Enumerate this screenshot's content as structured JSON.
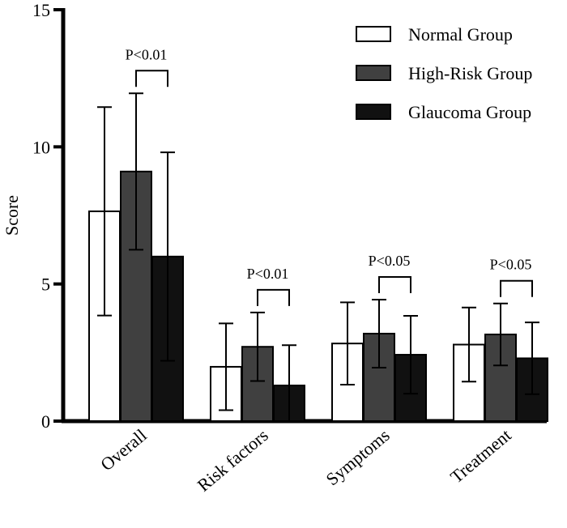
{
  "chart_data": {
    "type": "bar",
    "title": "",
    "xlabel": "",
    "ylabel": "Score",
    "ylim": [
      0,
      15
    ],
    "yticks": [
      0,
      5,
      10,
      15
    ],
    "categories": [
      "Overall",
      "Risk factors",
      "Symptoms",
      "Treatment"
    ],
    "series": [
      {
        "name": "Normal Group",
        "color": "#ffffff",
        "values": [
          7.65,
          1.98,
          2.83,
          2.79
        ],
        "errors": [
          3.8,
          1.58,
          1.5,
          1.35
        ]
      },
      {
        "name": "High-Risk Group",
        "color": "#404040",
        "values": [
          9.1,
          2.71,
          3.19,
          3.16
        ],
        "errors": [
          2.85,
          1.25,
          1.24,
          1.13
        ]
      },
      {
        "name": "Glaucoma Group",
        "color": "#111111",
        "values": [
          6.0,
          1.3,
          2.42,
          2.29
        ],
        "errors": [
          3.8,
          1.47,
          1.42,
          1.31
        ]
      }
    ],
    "legend_position": "top-right",
    "significance": [
      {
        "category": "Overall",
        "label": "P<0.01"
      },
      {
        "category": "Risk factors",
        "label": "P<0.01"
      },
      {
        "category": "Symptoms",
        "label": "P<0.05"
      },
      {
        "category": "Treatment",
        "label": "P<0.05"
      }
    ]
  }
}
